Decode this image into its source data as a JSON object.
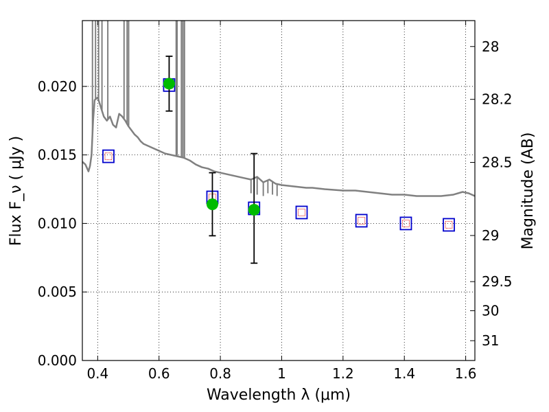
{
  "chart_data": {
    "type": "scatter",
    "title": "",
    "xlabel": "Wavelength  λ (μm)",
    "ylabel": "Flux  F_ν  ( μJy )",
    "y2label": "Magnitude (AB)",
    "xlim": [
      0.35,
      1.63
    ],
    "ylim": [
      0.0,
      0.0248
    ],
    "grid": true,
    "x_ticks": [
      {
        "value": 0.4,
        "label": "0.4"
      },
      {
        "value": 0.6,
        "label": "0.6"
      },
      {
        "value": 0.8,
        "label": "0.8"
      },
      {
        "value": 1.0,
        "label": "1"
      },
      {
        "value": 1.2,
        "label": "1.2"
      },
      {
        "value": 1.4,
        "label": "1.4"
      },
      {
        "value": 1.6,
        "label": "1.6"
      }
    ],
    "y_ticks": [
      {
        "value": 0.0,
        "label": "0.000"
      },
      {
        "value": 0.005,
        "label": "0.005"
      },
      {
        "value": 0.01,
        "label": "0.010"
      },
      {
        "value": 0.015,
        "label": "0.015"
      },
      {
        "value": 0.02,
        "label": "0.020"
      }
    ],
    "y2_ticks": [
      {
        "value": 28,
        "label": "28"
      },
      {
        "value": 28.2,
        "label": "28.2"
      },
      {
        "value": 28.5,
        "label": "28.5"
      },
      {
        "value": 29,
        "label": "29"
      },
      {
        "value": 29.5,
        "label": "29.5"
      },
      {
        "value": 30,
        "label": "30"
      },
      {
        "value": 31,
        "label": "31"
      }
    ],
    "colors": {
      "template": "#808080",
      "observed": "#00bb00",
      "model_box": "#0000cc",
      "model_inner": "#dd0000",
      "errorbar": "#000000"
    },
    "series": [
      {
        "type": "line",
        "points": [
          [
            0.35,
            0.0145
          ],
          [
            0.36,
            0.0143
          ],
          [
            0.37,
            0.0138
          ],
          [
            0.375,
            0.0142
          ],
          [
            0.38,
            0.015
          ],
          [
            0.385,
            0.0175
          ],
          [
            0.39,
            0.019
          ],
          [
            0.4,
            0.0192
          ],
          [
            0.41,
            0.0185
          ],
          [
            0.42,
            0.0178
          ],
          [
            0.43,
            0.0175
          ],
          [
            0.44,
            0.0178
          ],
          [
            0.45,
            0.0172
          ],
          [
            0.46,
            0.017
          ],
          [
            0.47,
            0.018
          ],
          [
            0.48,
            0.0178
          ],
          [
            0.49,
            0.0175
          ],
          [
            0.5,
            0.0171
          ],
          [
            0.51,
            0.0168
          ],
          [
            0.52,
            0.0165
          ],
          [
            0.53,
            0.0163
          ],
          [
            0.54,
            0.016
          ],
          [
            0.55,
            0.0158
          ],
          [
            0.56,
            0.0157
          ],
          [
            0.57,
            0.0156
          ],
          [
            0.58,
            0.0155
          ],
          [
            0.59,
            0.0154
          ],
          [
            0.6,
            0.0153
          ],
          [
            0.62,
            0.0151
          ],
          [
            0.64,
            0.015
          ],
          [
            0.66,
            0.0149
          ],
          [
            0.68,
            0.0148
          ],
          [
            0.7,
            0.0146
          ],
          [
            0.72,
            0.0143
          ],
          [
            0.74,
            0.0141
          ],
          [
            0.76,
            0.014
          ],
          [
            0.78,
            0.0138
          ],
          [
            0.8,
            0.0137
          ],
          [
            0.82,
            0.0136
          ],
          [
            0.84,
            0.0135
          ],
          [
            0.86,
            0.0134
          ],
          [
            0.88,
            0.0133
          ],
          [
            0.9,
            0.0132
          ],
          [
            0.92,
            0.0134
          ],
          [
            0.94,
            0.013
          ],
          [
            0.96,
            0.0132
          ],
          [
            0.98,
            0.0129
          ],
          [
            1.0,
            0.0128
          ],
          [
            1.04,
            0.0127
          ],
          [
            1.08,
            0.0126
          ],
          [
            1.1,
            0.0126
          ],
          [
            1.14,
            0.0125
          ],
          [
            1.2,
            0.0124
          ],
          [
            1.24,
            0.0124
          ],
          [
            1.28,
            0.0123
          ],
          [
            1.32,
            0.0122
          ],
          [
            1.36,
            0.0121
          ],
          [
            1.4,
            0.0121
          ],
          [
            1.44,
            0.012
          ],
          [
            1.48,
            0.012
          ],
          [
            1.52,
            0.012
          ],
          [
            1.56,
            0.0121
          ],
          [
            1.59,
            0.0123
          ],
          [
            1.61,
            0.0122
          ],
          [
            1.63,
            0.012
          ]
        ],
        "spikes": [
          [
            0.383,
            0.0248
          ],
          [
            0.393,
            0.0248
          ],
          [
            0.403,
            0.0248
          ],
          [
            0.414,
            0.0248
          ],
          [
            0.433,
            0.0248
          ],
          [
            0.486,
            0.0248
          ],
          [
            0.496,
            0.0248
          ],
          [
            0.501,
            0.0248
          ],
          [
            0.656,
            0.0248
          ],
          [
            0.659,
            0.0248
          ],
          [
            0.673,
            0.0248
          ],
          [
            0.678,
            0.0248
          ],
          [
            0.683,
            0.0248
          ]
        ],
        "dips": [
          [
            0.9,
            0.0128
          ],
          [
            0.92,
            0.0127
          ],
          [
            0.94,
            0.0126
          ],
          [
            0.955,
            0.0128
          ],
          [
            0.97,
            0.0127
          ],
          [
            0.985,
            0.0126
          ]
        ]
      }
    ],
    "observed": [
      {
        "x": 0.633,
        "y": 0.0202,
        "yerr": [
          0.0182,
          0.0222
        ]
      },
      {
        "x": 0.774,
        "y": 0.0114,
        "yerr": [
          0.0091,
          0.0137
        ]
      },
      {
        "x": 0.91,
        "y": 0.011,
        "yerr": [
          0.0071,
          0.0151
        ]
      }
    ],
    "model_boxes": [
      {
        "x": 0.435,
        "y": 0.0149
      },
      {
        "x": 0.633,
        "y": 0.0201
      },
      {
        "x": 0.774,
        "y": 0.0119
      },
      {
        "x": 0.91,
        "y": 0.0111
      },
      {
        "x": 1.065,
        "y": 0.0108
      },
      {
        "x": 1.26,
        "y": 0.0102
      },
      {
        "x": 1.405,
        "y": 0.01
      },
      {
        "x": 1.545,
        "y": 0.0099
      }
    ]
  }
}
